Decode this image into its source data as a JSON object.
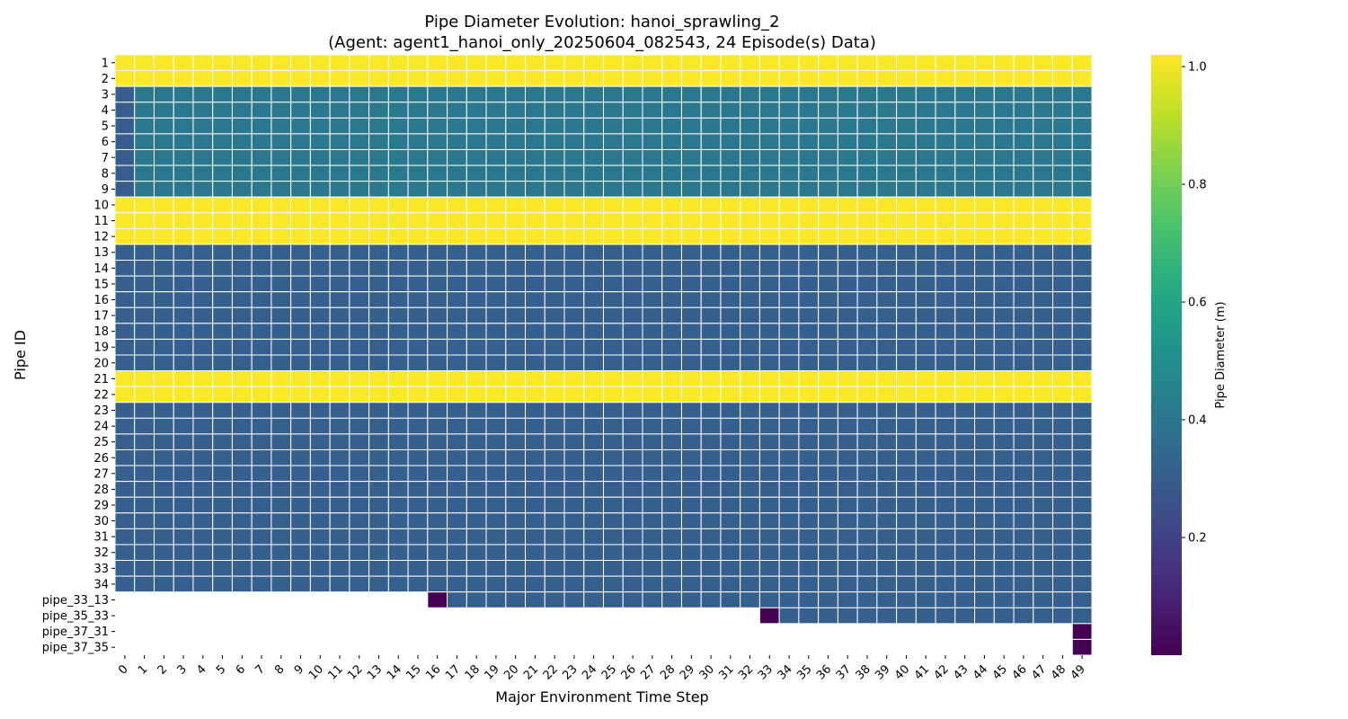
{
  "chart_data": {
    "type": "heatmap",
    "title": "Pipe Diameter Evolution: hanoi_sprawling_2",
    "subtitle": "(Agent: agent1_hanoi_only_20250604_082543, 24 Episode(s) Data)",
    "xlabel": "Major Environment Time Step",
    "ylabel": "Pipe ID",
    "colorbar_label": "Pipe Diameter (m)",
    "colormap": "viridis",
    "vmin": 0.0,
    "vmax": 1.02,
    "colorbar_ticks": [
      "0.2",
      "0.4",
      "0.6",
      "0.8",
      "1.0"
    ],
    "grid": true,
    "missing_color": "#ffffff",
    "x": [
      "0",
      "1",
      "2",
      "3",
      "4",
      "5",
      "6",
      "7",
      "8",
      "9",
      "10",
      "11",
      "12",
      "13",
      "14",
      "15",
      "16",
      "17",
      "18",
      "19",
      "20",
      "21",
      "22",
      "23",
      "24",
      "25",
      "26",
      "27",
      "28",
      "29",
      "30",
      "31",
      "32",
      "33",
      "34",
      "35",
      "36",
      "37",
      "38",
      "39",
      "40",
      "41",
      "42",
      "43",
      "44",
      "45",
      "46",
      "47",
      "48",
      "49"
    ],
    "y": [
      "1",
      "2",
      "3",
      "4",
      "5",
      "6",
      "7",
      "8",
      "9",
      "10",
      "11",
      "12",
      "13",
      "14",
      "15",
      "16",
      "17",
      "18",
      "19",
      "20",
      "21",
      "22",
      "23",
      "24",
      "25",
      "26",
      "27",
      "28",
      "29",
      "30",
      "31",
      "32",
      "33",
      "34",
      "pipe_33_13",
      "pipe_35_33",
      "pipe_37_31",
      "pipe_37_35"
    ],
    "rows": [
      {
        "pipe": "1",
        "segments": [
          {
            "from": 0,
            "to": 49,
            "value": 1.016
          }
        ]
      },
      {
        "pipe": "2",
        "segments": [
          {
            "from": 0,
            "to": 49,
            "value": 1.016
          }
        ]
      },
      {
        "pipe": "3",
        "segments": [
          {
            "from": 0,
            "to": 0,
            "value": 0.3
          },
          {
            "from": 1,
            "to": 49,
            "value": 0.4064
          }
        ]
      },
      {
        "pipe": "4",
        "segments": [
          {
            "from": 0,
            "to": 0,
            "value": 0.3
          },
          {
            "from": 1,
            "to": 49,
            "value": 0.4064
          }
        ]
      },
      {
        "pipe": "5",
        "segments": [
          {
            "from": 0,
            "to": 0,
            "value": 0.3
          },
          {
            "from": 1,
            "to": 49,
            "value": 0.4064
          }
        ]
      },
      {
        "pipe": "6",
        "segments": [
          {
            "from": 0,
            "to": 0,
            "value": 0.3
          },
          {
            "from": 1,
            "to": 49,
            "value": 0.4064
          }
        ]
      },
      {
        "pipe": "7",
        "segments": [
          {
            "from": 0,
            "to": 0,
            "value": 0.3
          },
          {
            "from": 1,
            "to": 49,
            "value": 0.4064
          }
        ]
      },
      {
        "pipe": "8",
        "segments": [
          {
            "from": 0,
            "to": 0,
            "value": 0.3
          },
          {
            "from": 1,
            "to": 49,
            "value": 0.4064
          }
        ]
      },
      {
        "pipe": "9",
        "segments": [
          {
            "from": 0,
            "to": 0,
            "value": 0.3
          },
          {
            "from": 1,
            "to": 49,
            "value": 0.4064
          }
        ]
      },
      {
        "pipe": "10",
        "segments": [
          {
            "from": 0,
            "to": 49,
            "value": 1.016
          }
        ]
      },
      {
        "pipe": "11",
        "segments": [
          {
            "from": 0,
            "to": 49,
            "value": 1.016
          }
        ]
      },
      {
        "pipe": "12",
        "segments": [
          {
            "from": 0,
            "to": 49,
            "value": 1.016
          }
        ]
      },
      {
        "pipe": "13",
        "segments": [
          {
            "from": 0,
            "to": 49,
            "value": 0.3048
          }
        ]
      },
      {
        "pipe": "14",
        "segments": [
          {
            "from": 0,
            "to": 49,
            "value": 0.3048
          }
        ]
      },
      {
        "pipe": "15",
        "segments": [
          {
            "from": 0,
            "to": 49,
            "value": 0.3048
          }
        ]
      },
      {
        "pipe": "16",
        "segments": [
          {
            "from": 0,
            "to": 49,
            "value": 0.3048
          }
        ]
      },
      {
        "pipe": "17",
        "segments": [
          {
            "from": 0,
            "to": 49,
            "value": 0.3048
          }
        ]
      },
      {
        "pipe": "18",
        "segments": [
          {
            "from": 0,
            "to": 49,
            "value": 0.3048
          }
        ]
      },
      {
        "pipe": "19",
        "segments": [
          {
            "from": 0,
            "to": 49,
            "value": 0.3048
          }
        ]
      },
      {
        "pipe": "20",
        "segments": [
          {
            "from": 0,
            "to": 49,
            "value": 0.3048
          }
        ]
      },
      {
        "pipe": "21",
        "segments": [
          {
            "from": 0,
            "to": 49,
            "value": 1.016
          }
        ]
      },
      {
        "pipe": "22",
        "segments": [
          {
            "from": 0,
            "to": 49,
            "value": 1.016
          }
        ]
      },
      {
        "pipe": "23",
        "segments": [
          {
            "from": 0,
            "to": 49,
            "value": 0.3048
          }
        ]
      },
      {
        "pipe": "24",
        "segments": [
          {
            "from": 0,
            "to": 49,
            "value": 0.3048
          }
        ]
      },
      {
        "pipe": "25",
        "segments": [
          {
            "from": 0,
            "to": 49,
            "value": 0.3048
          }
        ]
      },
      {
        "pipe": "26",
        "segments": [
          {
            "from": 0,
            "to": 49,
            "value": 0.3048
          }
        ]
      },
      {
        "pipe": "27",
        "segments": [
          {
            "from": 0,
            "to": 49,
            "value": 0.3048
          }
        ]
      },
      {
        "pipe": "28",
        "segments": [
          {
            "from": 0,
            "to": 49,
            "value": 0.3048
          }
        ]
      },
      {
        "pipe": "29",
        "segments": [
          {
            "from": 0,
            "to": 49,
            "value": 0.3048
          }
        ]
      },
      {
        "pipe": "30",
        "segments": [
          {
            "from": 0,
            "to": 49,
            "value": 0.3048
          }
        ]
      },
      {
        "pipe": "31",
        "segments": [
          {
            "from": 0,
            "to": 49,
            "value": 0.3048
          }
        ]
      },
      {
        "pipe": "32",
        "segments": [
          {
            "from": 0,
            "to": 49,
            "value": 0.3048
          }
        ]
      },
      {
        "pipe": "33",
        "segments": [
          {
            "from": 0,
            "to": 49,
            "value": 0.3048
          }
        ]
      },
      {
        "pipe": "34",
        "segments": [
          {
            "from": 0,
            "to": 49,
            "value": 0.3048
          }
        ]
      },
      {
        "pipe": "pipe_33_13",
        "segments": [
          {
            "from": 16,
            "to": 16,
            "value": 0.0
          },
          {
            "from": 17,
            "to": 49,
            "value": 0.3048
          }
        ]
      },
      {
        "pipe": "pipe_35_33",
        "segments": [
          {
            "from": 33,
            "to": 33,
            "value": 0.0
          },
          {
            "from": 34,
            "to": 49,
            "value": 0.3048
          }
        ]
      },
      {
        "pipe": "pipe_37_31",
        "segments": [
          {
            "from": 49,
            "to": 49,
            "value": 0.0
          }
        ]
      },
      {
        "pipe": "pipe_37_35",
        "segments": [
          {
            "from": 49,
            "to": 49,
            "value": 0.0
          }
        ]
      }
    ]
  }
}
